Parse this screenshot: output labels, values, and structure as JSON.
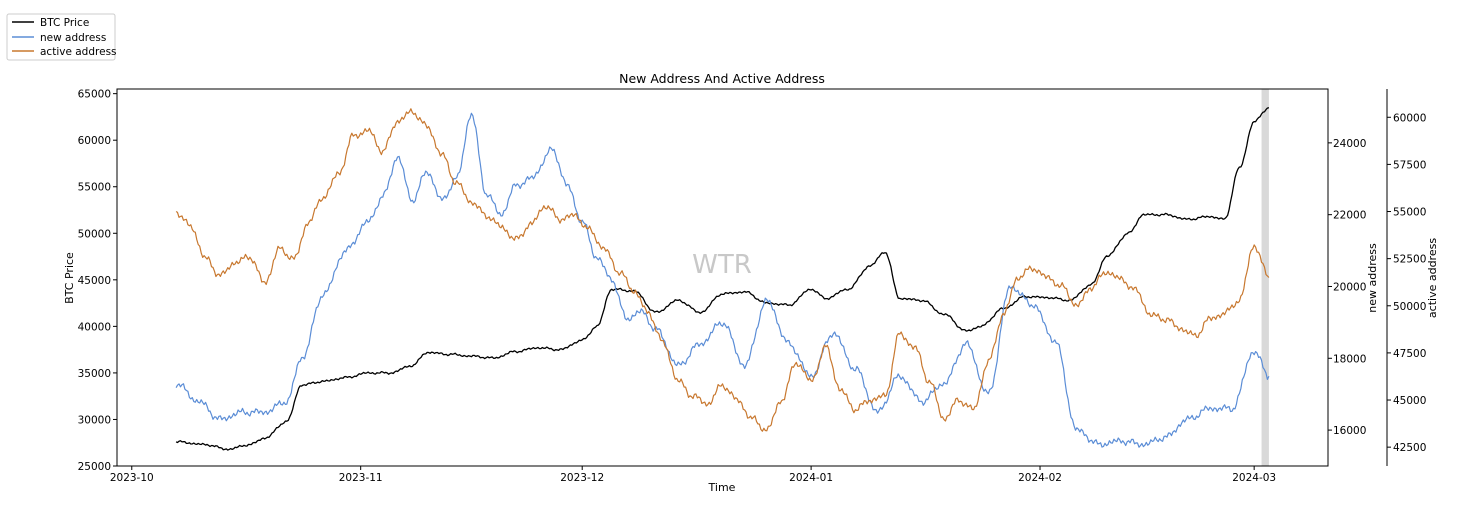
{
  "chart_data": {
    "type": "line",
    "title": "New Address And Active Address",
    "xlabel": "Time",
    "watermark": "WTR",
    "x_range": [
      "2023-10-07",
      "2024-03-03"
    ],
    "x_ticks": [
      "2023-10",
      "2023-11",
      "2023-12",
      "2024-01",
      "2024-02",
      "2024-03"
    ],
    "highlight_range": [
      "2024-03-02",
      "2024-03-03"
    ],
    "highlight_color": "#d9d9d9",
    "axes": {
      "left": {
        "label": "BTC Price",
        "ylim": [
          25000,
          65500
        ],
        "ticks": [
          "25000",
          "30000",
          "35000",
          "40000",
          "45000",
          "50000",
          "55000",
          "60000",
          "65000"
        ]
      },
      "right1": {
        "label": "new address",
        "ylim": [
          15000,
          25500
        ],
        "ticks": [
          "16000",
          "18000",
          "20000",
          "22000",
          "24000"
        ]
      },
      "right2": {
        "label": "active address",
        "ylim": [
          41500,
          61500
        ],
        "ticks": [
          "42500",
          "45000",
          "47500",
          "50000",
          "52500",
          "55000",
          "57500",
          "60000"
        ]
      }
    },
    "legend": [
      {
        "name": "BTC Price",
        "color": "#000000"
      },
      {
        "name": "new address",
        "color": "#5b8dd6"
      },
      {
        "name": "active address",
        "color": "#c8782f"
      }
    ],
    "series": [
      {
        "name": "BTC Price",
        "axis": "left",
        "color": "#000000",
        "points": [
          [
            "2023-10-07",
            27600
          ],
          [
            "2023-10-11",
            27300
          ],
          [
            "2023-10-14",
            26800
          ],
          [
            "2023-10-17",
            27300
          ],
          [
            "2023-10-19",
            28000
          ],
          [
            "2023-10-22",
            29800
          ],
          [
            "2023-10-24",
            33700
          ],
          [
            "2023-10-27",
            34100
          ],
          [
            "2023-10-30",
            34500
          ],
          [
            "2023-11-02",
            35000
          ],
          [
            "2023-11-05",
            35000
          ],
          [
            "2023-11-08",
            35800
          ],
          [
            "2023-11-10",
            37200
          ],
          [
            "2023-11-13",
            37000
          ],
          [
            "2023-11-16",
            36800
          ],
          [
            "2023-11-19",
            36600
          ],
          [
            "2023-11-22",
            37300
          ],
          [
            "2023-11-25",
            37700
          ],
          [
            "2023-11-28",
            37500
          ],
          [
            "2023-12-01",
            38500
          ],
          [
            "2023-12-03",
            40000
          ],
          [
            "2023-12-05",
            44000
          ],
          [
            "2023-12-08",
            43800
          ],
          [
            "2023-12-11",
            41500
          ],
          [
            "2023-12-14",
            42800
          ],
          [
            "2023-12-17",
            41500
          ],
          [
            "2023-12-20",
            43500
          ],
          [
            "2023-12-23",
            43700
          ],
          [
            "2023-12-26",
            42500
          ],
          [
            "2023-12-29",
            42300
          ],
          [
            "2024-01-01",
            44000
          ],
          [
            "2024-01-03",
            43000
          ],
          [
            "2024-01-06",
            44000
          ],
          [
            "2024-01-09",
            46500
          ],
          [
            "2024-01-11",
            48000
          ],
          [
            "2024-01-13",
            43000
          ],
          [
            "2024-01-16",
            42800
          ],
          [
            "2024-01-19",
            41300
          ],
          [
            "2024-01-22",
            39500
          ],
          [
            "2024-01-24",
            40000
          ],
          [
            "2024-01-27",
            41900
          ],
          [
            "2024-01-30",
            43200
          ],
          [
            "2024-02-02",
            43100
          ],
          [
            "2024-02-05",
            42800
          ],
          [
            "2024-02-08",
            44500
          ],
          [
            "2024-02-10",
            47500
          ],
          [
            "2024-02-13",
            50000
          ],
          [
            "2024-02-15",
            52000
          ],
          [
            "2024-02-18",
            52000
          ],
          [
            "2024-02-21",
            51500
          ],
          [
            "2024-02-24",
            51800
          ],
          [
            "2024-02-26",
            51500
          ],
          [
            "2024-02-28",
            57000
          ],
          [
            "2024-03-01",
            62000
          ],
          [
            "2024-03-03",
            63500
          ]
        ]
      },
      {
        "name": "new address",
        "axis": "right1",
        "color": "#5b8dd6",
        "points": [
          [
            "2023-10-07",
            17300
          ],
          [
            "2023-10-10",
            16800
          ],
          [
            "2023-10-13",
            16300
          ],
          [
            "2023-10-16",
            16500
          ],
          [
            "2023-10-19",
            16500
          ],
          [
            "2023-10-22",
            16800
          ],
          [
            "2023-10-24",
            18000
          ],
          [
            "2023-10-27",
            19800
          ],
          [
            "2023-10-30",
            21000
          ],
          [
            "2023-11-02",
            21800
          ],
          [
            "2023-11-04",
            22500
          ],
          [
            "2023-11-06",
            23600
          ],
          [
            "2023-11-08",
            22400
          ],
          [
            "2023-11-10",
            23200
          ],
          [
            "2023-11-12",
            22400
          ],
          [
            "2023-11-14",
            23000
          ],
          [
            "2023-11-16",
            24800
          ],
          [
            "2023-11-18",
            22600
          ],
          [
            "2023-11-20",
            22000
          ],
          [
            "2023-11-22",
            22800
          ],
          [
            "2023-11-24",
            23000
          ],
          [
            "2023-11-27",
            23800
          ],
          [
            "2023-11-29",
            22800
          ],
          [
            "2023-12-01",
            21800
          ],
          [
            "2023-12-03",
            20800
          ],
          [
            "2023-12-05",
            20200
          ],
          [
            "2023-12-07",
            19100
          ],
          [
            "2023-12-09",
            19300
          ],
          [
            "2023-12-11",
            18800
          ],
          [
            "2023-12-14",
            17800
          ],
          [
            "2023-12-17",
            18400
          ],
          [
            "2023-12-20",
            19000
          ],
          [
            "2023-12-23",
            17800
          ],
          [
            "2023-12-26",
            19600
          ],
          [
            "2023-12-29",
            18400
          ],
          [
            "2024-01-01",
            17500
          ],
          [
            "2024-01-04",
            18700
          ],
          [
            "2024-01-07",
            17700
          ],
          [
            "2024-01-10",
            16500
          ],
          [
            "2024-01-13",
            17500
          ],
          [
            "2024-01-16",
            16800
          ],
          [
            "2024-01-19",
            17300
          ],
          [
            "2024-01-22",
            18400
          ],
          [
            "2024-01-25",
            17000
          ],
          [
            "2024-01-28",
            20000
          ],
          [
            "2024-01-31",
            19500
          ],
          [
            "2024-02-03",
            18500
          ],
          [
            "2024-02-06",
            16000
          ],
          [
            "2024-02-09",
            15600
          ],
          [
            "2024-02-12",
            15700
          ],
          [
            "2024-02-15",
            15600
          ],
          [
            "2024-02-18",
            15800
          ],
          [
            "2024-02-21",
            16300
          ],
          [
            "2024-02-24",
            16600
          ],
          [
            "2024-02-27",
            16600
          ],
          [
            "2024-03-01",
            18200
          ],
          [
            "2024-03-03",
            17500
          ]
        ]
      },
      {
        "name": "active address",
        "axis": "right2",
        "color": "#c8782f",
        "points": [
          [
            "2023-10-07",
            55000
          ],
          [
            "2023-10-09",
            54200
          ],
          [
            "2023-10-11",
            52500
          ],
          [
            "2023-10-13",
            51600
          ],
          [
            "2023-10-15",
            52300
          ],
          [
            "2023-10-17",
            52600
          ],
          [
            "2023-10-19",
            51200
          ],
          [
            "2023-10-21",
            53000
          ],
          [
            "2023-10-23",
            52500
          ],
          [
            "2023-10-25",
            54500
          ],
          [
            "2023-10-27",
            55800
          ],
          [
            "2023-10-29",
            57000
          ],
          [
            "2023-10-31",
            59000
          ],
          [
            "2023-11-02",
            59300
          ],
          [
            "2023-11-04",
            58200
          ],
          [
            "2023-11-06",
            59800
          ],
          [
            "2023-11-08",
            60300
          ],
          [
            "2023-11-10",
            59500
          ],
          [
            "2023-11-12",
            58000
          ],
          [
            "2023-11-14",
            56500
          ],
          [
            "2023-11-16",
            55500
          ],
          [
            "2023-11-18",
            54800
          ],
          [
            "2023-11-20",
            54200
          ],
          [
            "2023-11-22",
            53500
          ],
          [
            "2023-11-24",
            54300
          ],
          [
            "2023-11-26",
            55300
          ],
          [
            "2023-11-28",
            54600
          ],
          [
            "2023-11-30",
            54800
          ],
          [
            "2023-12-02",
            54000
          ],
          [
            "2023-12-04",
            53000
          ],
          [
            "2023-12-06",
            51800
          ],
          [
            "2023-12-08",
            50800
          ],
          [
            "2023-12-10",
            49600
          ],
          [
            "2023-12-12",
            48000
          ],
          [
            "2023-12-14",
            46000
          ],
          [
            "2023-12-16",
            45200
          ],
          [
            "2023-12-18",
            44800
          ],
          [
            "2023-12-20",
            45800
          ],
          [
            "2023-12-22",
            45000
          ],
          [
            "2023-12-24",
            44000
          ],
          [
            "2023-12-26",
            43400
          ],
          [
            "2023-12-28",
            45000
          ],
          [
            "2023-12-30",
            47000
          ],
          [
            "2024-01-01",
            46000
          ],
          [
            "2024-01-03",
            47800
          ],
          [
            "2024-01-05",
            45500
          ],
          [
            "2024-01-07",
            44500
          ],
          [
            "2024-01-09",
            45000
          ],
          [
            "2024-01-11",
            45200
          ],
          [
            "2024-01-13",
            48500
          ],
          [
            "2024-01-15",
            47800
          ],
          [
            "2024-01-17",
            46000
          ],
          [
            "2024-01-19",
            44000
          ],
          [
            "2024-01-21",
            45000
          ],
          [
            "2024-01-23",
            44500
          ],
          [
            "2024-01-25",
            47000
          ],
          [
            "2024-01-27",
            49500
          ],
          [
            "2024-01-29",
            51500
          ],
          [
            "2024-01-31",
            52000
          ],
          [
            "2024-02-02",
            51500
          ],
          [
            "2024-02-04",
            51000
          ],
          [
            "2024-02-06",
            50000
          ],
          [
            "2024-02-08",
            51000
          ],
          [
            "2024-02-10",
            51800
          ],
          [
            "2024-02-12",
            51400
          ],
          [
            "2024-02-14",
            50800
          ],
          [
            "2024-02-16",
            49500
          ],
          [
            "2024-02-18",
            49300
          ],
          [
            "2024-02-20",
            48800
          ],
          [
            "2024-02-22",
            48400
          ],
          [
            "2024-02-24",
            49300
          ],
          [
            "2024-02-26",
            49600
          ],
          [
            "2024-02-28",
            50300
          ],
          [
            "2024-03-01",
            53200
          ],
          [
            "2024-03-03",
            51500
          ]
        ]
      }
    ]
  }
}
